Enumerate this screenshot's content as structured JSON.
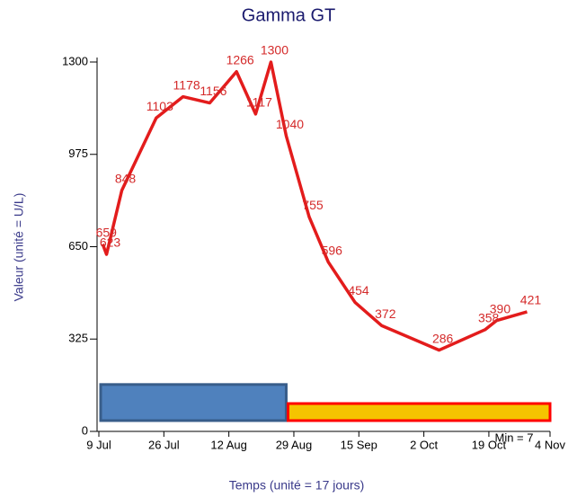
{
  "chart_data": {
    "type": "line",
    "title": "Gamma GT",
    "ylabel": "Valeur (unité = U/L)",
    "xlabel": "Temps (unité = 17 jours)",
    "annotation": "Min = 7",
    "xlim": [
      0,
      118
    ],
    "ylim": [
      0,
      1300
    ],
    "xticks": [
      {
        "value": 0,
        "label": "9 Jul"
      },
      {
        "value": 17,
        "label": "26 Jul"
      },
      {
        "value": 34,
        "label": "12 Aug"
      },
      {
        "value": 51,
        "label": "29 Aug"
      },
      {
        "value": 68,
        "label": "15 Sep"
      },
      {
        "value": 85,
        "label": "2 Oct"
      },
      {
        "value": 102,
        "label": "19 Oct"
      },
      {
        "value": 118,
        "label": "4 Nov"
      }
    ],
    "yticks": [
      0,
      325,
      650,
      975,
      1300
    ],
    "series": [
      {
        "name": "Gamma GT",
        "color": "#e31c1c",
        "x": [
          1,
          2,
          6,
          15,
          22,
          29,
          36,
          41,
          45,
          49,
          55,
          60,
          67,
          74,
          89,
          101,
          104,
          112
        ],
        "values": [
          659,
          623,
          848,
          1103,
          1178,
          1156,
          1266,
          1117,
          1300,
          1040,
          755,
          596,
          454,
          372,
          286,
          358,
          390,
          421
        ]
      }
    ],
    "bands": [
      {
        "x": [
          0,
          49
        ],
        "y": [
          38,
          165
        ],
        "color": "#4f81bd",
        "border": "#385d8a"
      },
      {
        "x": [
          49,
          118
        ],
        "y": [
          38,
          98
        ],
        "color": "#f5c400",
        "border": "#ff0000"
      }
    ]
  }
}
